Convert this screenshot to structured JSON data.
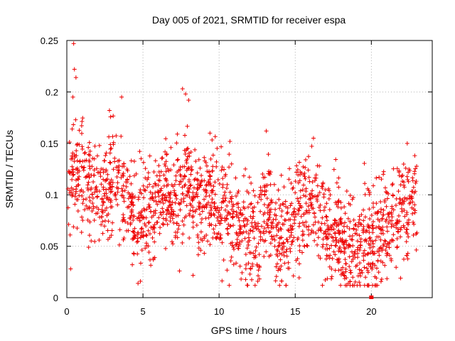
{
  "chart_data": {
    "type": "scatter",
    "title": "Day 005 of 2021, SRMTID for receiver espa",
    "xlabel": "GPS time / hours",
    "ylabel": "SRMTID / TECUs",
    "xlim": [
      0,
      24
    ],
    "ylim": [
      0,
      0.25
    ],
    "xticks": [
      0,
      5,
      10,
      15,
      20
    ],
    "xtick_labels": [
      "0",
      "5",
      "10",
      "15",
      "20"
    ],
    "yticks": [
      0,
      0.05,
      0.1,
      0.15,
      0.2,
      0.25
    ],
    "ytick_labels": [
      "0",
      "0.05",
      "0.1",
      "0.15",
      "0.2",
      "0.25"
    ],
    "grid": true,
    "marker": "+",
    "color": "#ee0000",
    "series": [
      {
        "name": "SRMTID",
        "trend_x": [
          0,
          0.5,
          1,
          1.5,
          2,
          2.5,
          3,
          3.5,
          4,
          4.5,
          5,
          5.5,
          6,
          6.5,
          7,
          7.5,
          8,
          8.5,
          9,
          9.5,
          10,
          10.5,
          11,
          11.5,
          12,
          12.5,
          13,
          13.5,
          14,
          14.5,
          15,
          15.5,
          16,
          16.5,
          17,
          17.5,
          18,
          18.5,
          19,
          19.5,
          20,
          20.5,
          21,
          21.5,
          22,
          22.5,
          23
        ],
        "trend_y": [
          0.1,
          0.12,
          0.115,
          0.11,
          0.105,
          0.1,
          0.105,
          0.11,
          0.09,
          0.075,
          0.08,
          0.085,
          0.095,
          0.1,
          0.095,
          0.11,
          0.115,
          0.1,
          0.105,
          0.1,
          0.085,
          0.08,
          0.075,
          0.07,
          0.065,
          0.06,
          0.085,
          0.07,
          0.055,
          0.065,
          0.075,
          0.085,
          0.1,
          0.09,
          0.07,
          0.06,
          0.055,
          0.05,
          0.045,
          0.045,
          0.05,
          0.06,
          0.065,
          0.075,
          0.085,
          0.09,
          0.1
        ],
        "spread": 0.025,
        "n_points": 1900,
        "outliers_x": [
          0.45,
          0.5,
          0.6,
          0.4,
          2.8,
          3.6,
          7.6,
          7.8,
          8.0,
          9.4,
          13.1,
          16.2,
          0.25,
          20.4,
          19.2,
          4.3,
          7.4
        ],
        "outliers_y": [
          0.247,
          0.222,
          0.214,
          0.195,
          0.182,
          0.195,
          0.203,
          0.198,
          0.192,
          0.16,
          0.162,
          0.155,
          0.028,
          0.012,
          0.015,
          0.032,
          0.026
        ]
      }
    ]
  }
}
